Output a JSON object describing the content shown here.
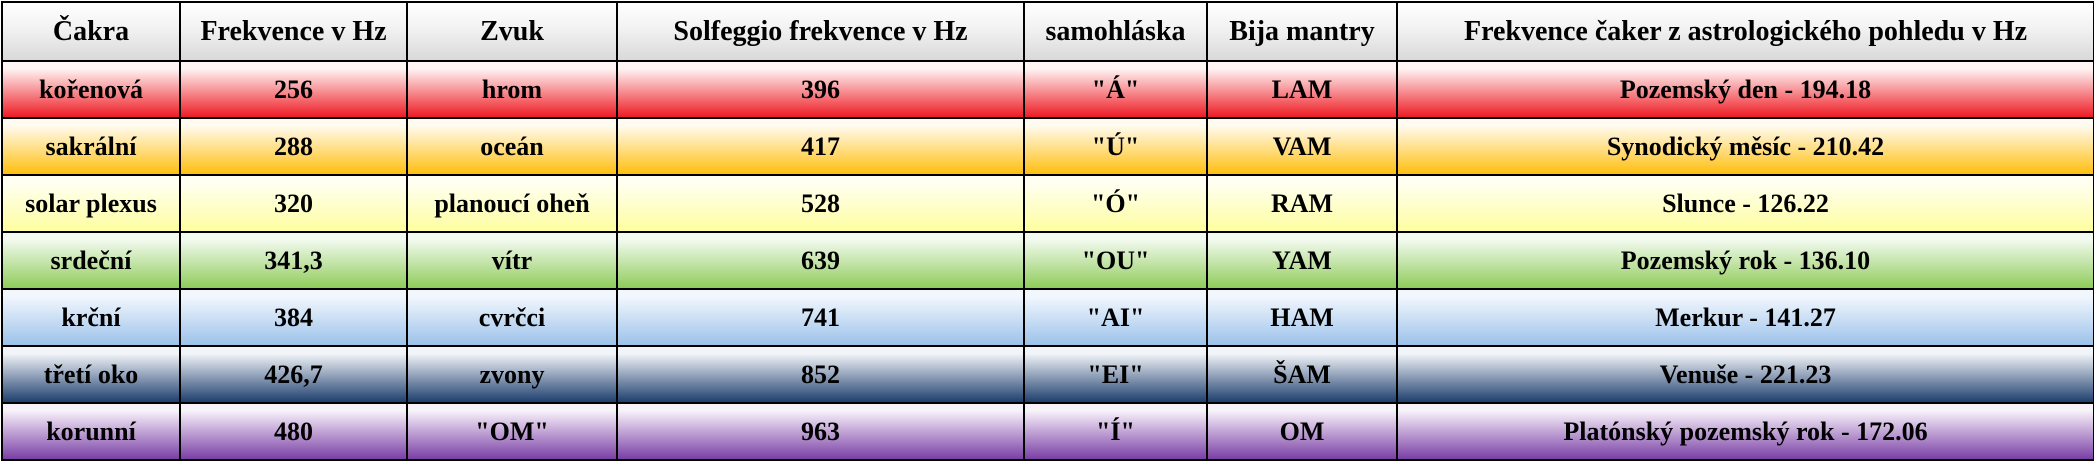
{
  "table": {
    "headers": [
      "Čakra",
      "Frekvence v Hz",
      "Zvuk",
      "Solfeggio frekvence v Hz",
      "samohláska",
      "Bija mantry",
      "Frekvence čaker z astrologického pohledu v Hz"
    ],
    "rows": [
      {
        "cells": [
          "kořenová",
          "256",
          "hrom",
          "396",
          "\"Á\"",
          "LAM",
          "Pozemský den - 194.18"
        ],
        "colors": {
          "light": "#fff5f5",
          "dark": "#ee1c24"
        }
      },
      {
        "cells": [
          "sakrální",
          "288",
          "oceán",
          "417",
          "\"Ú\"",
          "VAM",
          "Synodický měsíc - 210.42"
        ],
        "colors": {
          "light": "#fffbf0",
          "dark": "#ffbf0f"
        }
      },
      {
        "cells": [
          "solar plexus",
          "320",
          "planoucí oheň",
          "528",
          "\"Ó\"",
          "RAM",
          "Slunce - 126.22"
        ],
        "colors": {
          "light": "#fffff2",
          "dark": "#fefea0"
        }
      },
      {
        "cells": [
          "srdeční",
          "341,3",
          "vítr",
          "639",
          "\"OU\"",
          "YAM",
          "Pozemský rok - 136.10"
        ],
        "colors": {
          "light": "#f3faef",
          "dark": "#8fcc5a"
        }
      },
      {
        "cells": [
          "krční",
          "384",
          "cvrčci",
          "741",
          "\"AI\"",
          "HAM",
          "Merkur - 141.27"
        ],
        "colors": {
          "light": "#f2f7fd",
          "dark": "#9cc2ea"
        }
      },
      {
        "cells": [
          "třetí oko",
          "426,7",
          "zvony",
          "852",
          "\"EI\"",
          "ŠAM",
          "Venuše - 221.23"
        ],
        "colors": {
          "light": "#f2f4f8",
          "dark": "#1e3f6e"
        }
      },
      {
        "cells": [
          "korunní",
          "480",
          "\"OM\"",
          "963",
          "\"Í\"",
          "OM",
          "Platónský pozemský rok - 172.06"
        ],
        "colors": {
          "light": "#f8f2fb",
          "dark": "#7a3fa5"
        }
      }
    ]
  }
}
